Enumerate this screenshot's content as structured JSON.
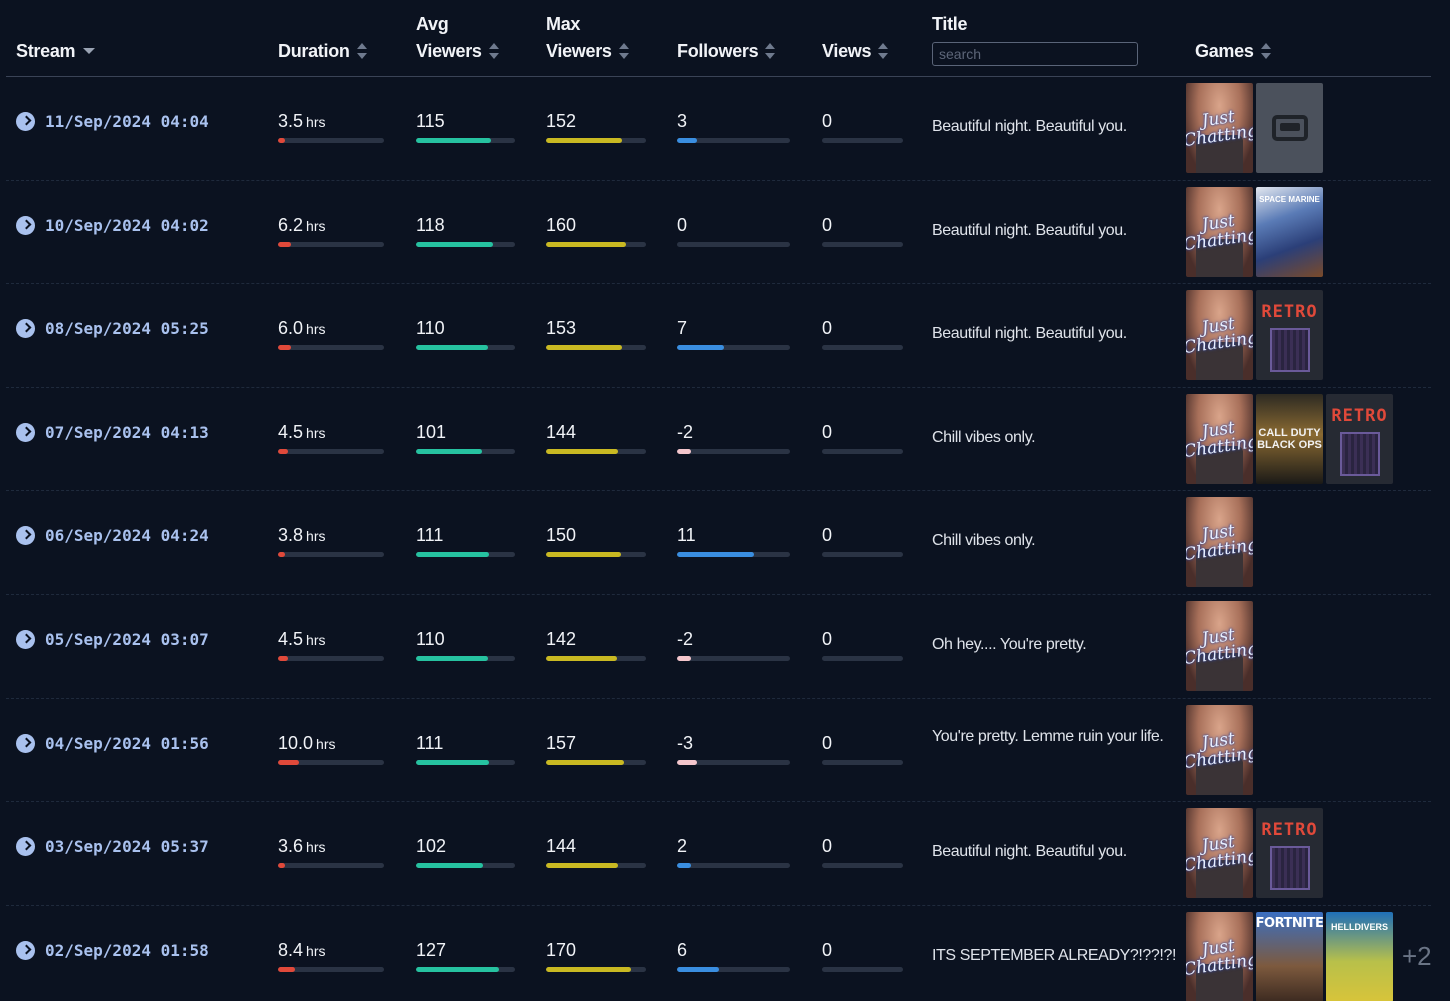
{
  "header": {
    "stream": "Stream",
    "duration": "Duration",
    "avg_line1": "Avg",
    "avg_line2": "Viewers",
    "max_line1": "Max",
    "max_line2": "Viewers",
    "followers": "Followers",
    "views": "Views",
    "title": "Title",
    "search_placeholder": "search",
    "games": "Games"
  },
  "colors": {
    "duration": "#e0493a",
    "avg": "#26c2a0",
    "max": "#c9b922",
    "followers_pos": "#3a8ee0",
    "followers_neg": "#f4c6cc"
  },
  "game_labels": {
    "just_chatting": "Just Chatting",
    "retro": "RETRO",
    "cod": "CALL DUTY BLACK OPS",
    "fortnite": "FORTNITE",
    "helldivers": "HELLDIVERS",
    "space_marine": "SPACE MARINE"
  },
  "rows": [
    {
      "stream": "11/Sep/2024 04:04",
      "duration": "3.5",
      "unit": "hrs",
      "duration_frac": 0.07,
      "avg": "115",
      "avg_frac": 0.76,
      "max": "152",
      "max_frac": 0.76,
      "followers": "3",
      "followers_frac": 0.18,
      "followers_neg": false,
      "views": "0",
      "title": "Beautiful night. Beautiful you.",
      "games": [
        "just_chatting",
        "gaming"
      ],
      "more": ""
    },
    {
      "stream": "10/Sep/2024 04:02",
      "duration": "6.2",
      "unit": "hrs",
      "duration_frac": 0.12,
      "avg": "118",
      "avg_frac": 0.78,
      "max": "160",
      "max_frac": 0.8,
      "followers": "0",
      "followers_frac": 0,
      "followers_neg": false,
      "views": "0",
      "title": "Beautiful night. Beautiful you.",
      "games": [
        "just_chatting",
        "space_marine"
      ],
      "more": ""
    },
    {
      "stream": "08/Sep/2024 05:25",
      "duration": "6.0",
      "unit": "hrs",
      "duration_frac": 0.12,
      "avg": "110",
      "avg_frac": 0.73,
      "max": "153",
      "max_frac": 0.76,
      "followers": "7",
      "followers_frac": 0.42,
      "followers_neg": false,
      "views": "0",
      "title": "Beautiful night. Beautiful you.",
      "games": [
        "just_chatting",
        "retro"
      ],
      "more": ""
    },
    {
      "stream": "07/Sep/2024 04:13",
      "duration": "4.5",
      "unit": "hrs",
      "duration_frac": 0.09,
      "avg": "101",
      "avg_frac": 0.67,
      "max": "144",
      "max_frac": 0.72,
      "followers": "-2",
      "followers_frac": 0.12,
      "followers_neg": true,
      "views": "0",
      "title": "Chill vibes only.",
      "games": [
        "just_chatting",
        "cod",
        "retro"
      ],
      "more": ""
    },
    {
      "stream": "06/Sep/2024 04:24",
      "duration": "3.8",
      "unit": "hrs",
      "duration_frac": 0.07,
      "avg": "111",
      "avg_frac": 0.74,
      "max": "150",
      "max_frac": 0.75,
      "followers": "11",
      "followers_frac": 0.68,
      "followers_neg": false,
      "views": "0",
      "title": "Chill vibes only.",
      "games": [
        "just_chatting"
      ],
      "more": ""
    },
    {
      "stream": "05/Sep/2024 03:07",
      "duration": "4.5",
      "unit": "hrs",
      "duration_frac": 0.09,
      "avg": "110",
      "avg_frac": 0.73,
      "max": "142",
      "max_frac": 0.71,
      "followers": "-2",
      "followers_frac": 0.12,
      "followers_neg": true,
      "views": "0",
      "title": "Oh hey.... You're pretty.",
      "games": [
        "just_chatting"
      ],
      "more": ""
    },
    {
      "stream": "04/Sep/2024 01:56",
      "duration": "10.0",
      "unit": "hrs",
      "duration_frac": 0.2,
      "avg": "111",
      "avg_frac": 0.74,
      "max": "157",
      "max_frac": 0.78,
      "followers": "-3",
      "followers_frac": 0.18,
      "followers_neg": true,
      "views": "0",
      "title": "You're pretty. Lemme ruin your life.",
      "games": [
        "just_chatting"
      ],
      "more": ""
    },
    {
      "stream": "03/Sep/2024 05:37",
      "duration": "3.6",
      "unit": "hrs",
      "duration_frac": 0.07,
      "avg": "102",
      "avg_frac": 0.68,
      "max": "144",
      "max_frac": 0.72,
      "followers": "2",
      "followers_frac": 0.12,
      "followers_neg": false,
      "views": "0",
      "title": "Beautiful night. Beautiful you.",
      "games": [
        "just_chatting",
        "retro"
      ],
      "more": ""
    },
    {
      "stream": "02/Sep/2024 01:58",
      "duration": "8.4",
      "unit": "hrs",
      "duration_frac": 0.16,
      "avg": "127",
      "avg_frac": 0.84,
      "max": "170",
      "max_frac": 0.85,
      "followers": "6",
      "followers_frac": 0.37,
      "followers_neg": false,
      "views": "0",
      "title": "ITS SEPTEMBER ALREADY?!??!?!",
      "games": [
        "just_chatting",
        "fortnite",
        "helldivers"
      ],
      "more": "+2"
    }
  ]
}
